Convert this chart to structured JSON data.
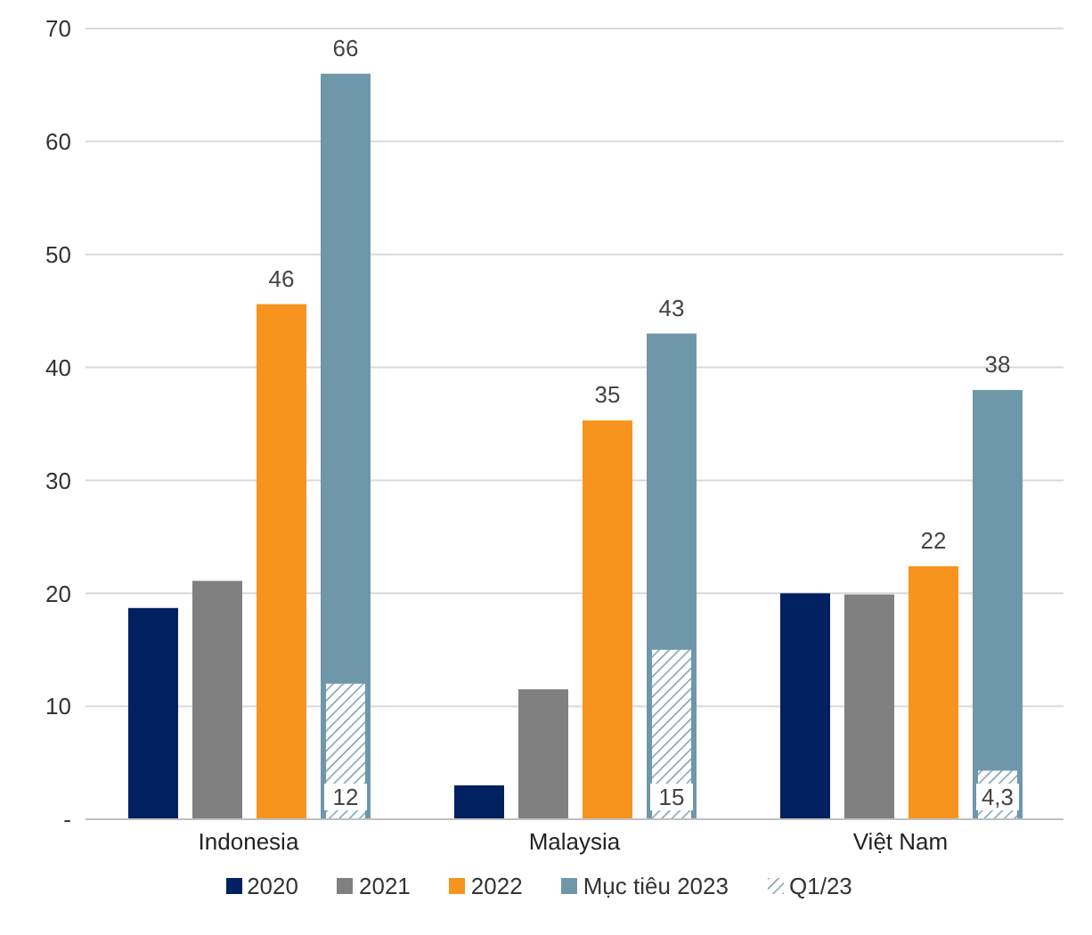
{
  "chart_data": {
    "type": "bar",
    "categories": [
      "Indonesia",
      "Malaysia",
      "Việt Nam"
    ],
    "series": [
      {
        "name": "2020",
        "color": "#002060",
        "values": [
          18.7,
          3,
          20
        ]
      },
      {
        "name": "2021",
        "color": "#808080",
        "values": [
          21.1,
          11.5,
          19.9
        ]
      },
      {
        "name": "2022",
        "color": "#f7941d",
        "values": [
          45.6,
          35.3,
          22.4
        ],
        "value_labels": [
          "46",
          "35",
          "22"
        ]
      },
      {
        "name": "Mục tiêu 2023",
        "color": "#6f97aa",
        "values": [
          66,
          43,
          38
        ],
        "value_labels": [
          "66",
          "43",
          "38"
        ]
      },
      {
        "name": "Q1/23",
        "color": "#6f97aa",
        "values": [
          12,
          15,
          4.3
        ],
        "value_labels": [
          "12",
          "15",
          "4,3"
        ]
      }
    ],
    "ylim": [
      0,
      70
    ],
    "yticks": [
      {
        "value": 0,
        "label": "-"
      },
      10,
      20,
      30,
      40,
      50,
      60,
      70
    ],
    "grid": "y",
    "legend": "bottom"
  }
}
